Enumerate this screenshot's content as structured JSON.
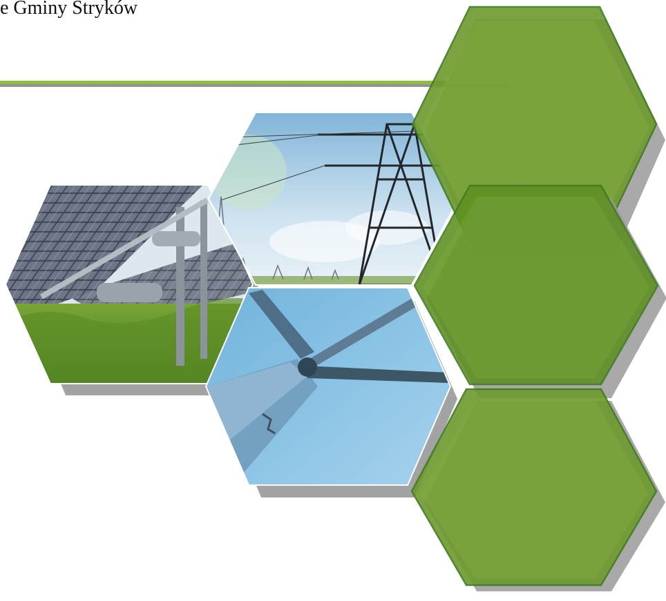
{
  "header": {
    "title_fragment": "e Gminy Stryków"
  },
  "images": {
    "solar": "solar-panel-photo",
    "power": "power-line-tower-photo",
    "wind": "wind-turbine-photo"
  },
  "colors": {
    "accent_green": "#8cbf3f",
    "hex_fill": "#6e9a2e",
    "hex_stroke": "#3e7a1f",
    "shadow": "#9a9a9a"
  }
}
